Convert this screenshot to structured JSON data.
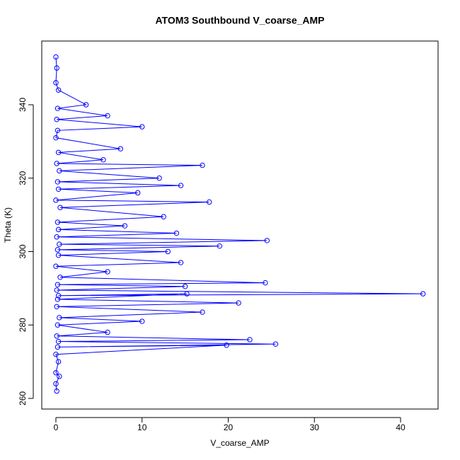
{
  "chart_data": {
    "type": "line",
    "title": "ATOM3 Southbound V_coarse_AMP",
    "x_label": "V_coarse_AMP",
    "y_label": "Theta (K)",
    "color": "#0000ff",
    "markers": true,
    "xlim": [
      -1.64,
      44.35
    ],
    "ylim": [
      257.1,
      357.35
    ],
    "xticks": [
      0,
      10,
      20,
      30,
      40
    ],
    "yticks": [
      260,
      280,
      300,
      320,
      340
    ],
    "x": [
      0,
      0.1,
      0,
      0.3,
      3.5,
      0.2,
      6,
      0.1,
      10,
      0.2,
      0,
      7.5,
      0.3,
      5.5,
      0.1,
      17,
      0.4,
      12,
      0.2,
      14.5,
      0.3,
      9.5,
      0,
      17.8,
      0.5,
      12.5,
      0.2,
      8,
      0.3,
      14,
      0.1,
      24.5,
      0.4,
      19,
      0.2,
      13,
      0.3,
      14.5,
      0,
      6,
      0.5,
      24.3,
      0.2,
      15,
      0.1,
      42.6,
      0.3,
      15.2,
      0.2,
      21.2,
      0.1,
      17,
      0.4,
      10,
      0.2,
      6,
      0.1,
      22.5,
      0.3,
      25.5,
      0.2,
      19.8,
      0,
      0.3,
      0,
      0.4,
      0,
      0.1
    ],
    "values": [
      353,
      350,
      346,
      344,
      340,
      339,
      337,
      336,
      334,
      333,
      331,
      328,
      327,
      325,
      324,
      323.5,
      322,
      320,
      319,
      318,
      317,
      316,
      314,
      313.5,
      312,
      309.5,
      308,
      307,
      306,
      305,
      304,
      303,
      302,
      301.5,
      300.5,
      300,
      299,
      297,
      296,
      294.5,
      293,
      291.5,
      291,
      290.5,
      289.5,
      288.5,
      288,
      288.5,
      287,
      286,
      285,
      283.5,
      282,
      281,
      280,
      278,
      277,
      276,
      275.5,
      274.8,
      274,
      274.5,
      272,
      270,
      267,
      266,
      264,
      262
    ]
  }
}
